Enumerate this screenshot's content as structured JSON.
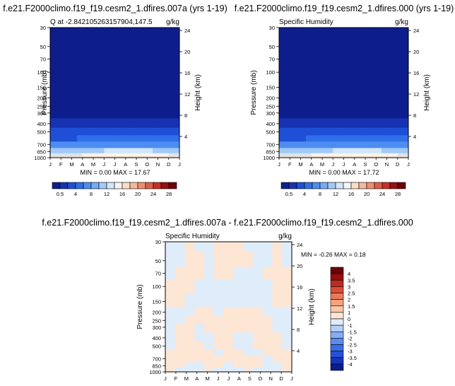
{
  "panels": [
    {
      "id": "left",
      "title": "f.e21.F2000climo.f19_f19.cesm2_1.dfires.007a (yrs 1-19)",
      "subtitle_left": "Q at -2.842105263157904,147.5",
      "units": "g/kg",
      "ylabel_left": "Pressure (mb)",
      "ylabel_right": "Height (km)",
      "minmax": "MIN =   0.00 MAX =  17.67"
    },
    {
      "id": "right",
      "title": "f.e21.F2000climo.f19_f19.cesm2_1.dfires.000 (yrs 1-19)",
      "subtitle_left": "Specific Humidity",
      "units": "g/kg",
      "ylabel_left": "Pressure (mb)",
      "ylabel_right": "Height (km)",
      "minmax": "MIN =   0.00 MAX =  17.72"
    },
    {
      "id": "diff",
      "title": "f.e21.F2000climo.f19_f19.cesm2_1.dfires.007a - f.e21.F2000climo.f19_f19.cesm2_1.dfires.000",
      "subtitle_left": "Specific Humidity",
      "units": "g/kg",
      "ylabel_left": "Pressure (mb)",
      "ylabel_right": "Height (km)",
      "minmax": "MIN = -0.26 MAX =   0.18"
    }
  ],
  "chart_data": [
    {
      "type": "heatmap",
      "panel": "left",
      "title": "f.e21.F2000climo.f19_f19.cesm2_1.dfires.007a (yrs 1-19)",
      "xlabel": "",
      "ylabel": "Pressure (mb)",
      "ylabel_right": "Height (km)",
      "x_ticks": [
        "J",
        "F",
        "M",
        "A",
        "M",
        "J",
        "J",
        "A",
        "S",
        "O",
        "N",
        "D",
        "J"
      ],
      "y_ticks": [
        "30",
        "50",
        "70",
        "100",
        "150",
        "200",
        "250",
        "300",
        "400",
        "500",
        "700",
        "850",
        "1000"
      ],
      "y2_ticks": [
        "24",
        "20",
        "16",
        "12",
        "8",
        "4"
      ],
      "rows_pressure": [
        30,
        50,
        70,
        100,
        150,
        200,
        250,
        300,
        400,
        500,
        600,
        700,
        850,
        925,
        1000
      ],
      "values_annual_mean": [
        0.0,
        0.0,
        0.0,
        0.0,
        0.01,
        0.02,
        0.05,
        0.4,
        1.3,
        2.8,
        4.6,
        7.0,
        11.5,
        14.5,
        17.0
      ],
      "seasonal_amp": [
        0,
        0,
        0,
        0,
        0,
        0,
        0,
        0.05,
        0.25,
        0.5,
        0.8,
        1.0,
        1.1,
        1.0,
        0.7
      ],
      "min": 0.0,
      "max": 17.67
    },
    {
      "type": "heatmap",
      "panel": "right",
      "title": "f.e21.F2000climo.f19_f19.cesm2_1.dfires.000 (yrs 1-19)",
      "xlabel": "",
      "ylabel": "Pressure (mb)",
      "ylabel_right": "Height (km)",
      "x_ticks": [
        "J",
        "F",
        "M",
        "A",
        "M",
        "J",
        "J",
        "A",
        "S",
        "O",
        "N",
        "D",
        "J"
      ],
      "y_ticks": [
        "30",
        "50",
        "70",
        "100",
        "150",
        "200",
        "250",
        "300",
        "400",
        "500",
        "700",
        "850",
        "1000"
      ],
      "y2_ticks": [
        "24",
        "20",
        "16",
        "12",
        "8",
        "4"
      ],
      "rows_pressure": [
        30,
        50,
        70,
        100,
        150,
        200,
        250,
        300,
        400,
        500,
        600,
        700,
        850,
        925,
        1000
      ],
      "values_annual_mean": [
        0.0,
        0.0,
        0.0,
        0.0,
        0.01,
        0.02,
        0.05,
        0.4,
        1.3,
        2.8,
        4.6,
        7.0,
        11.5,
        14.5,
        17.0
      ],
      "seasonal_amp": [
        0,
        0,
        0,
        0,
        0,
        0,
        0,
        0.05,
        0.25,
        0.5,
        0.8,
        1.0,
        1.1,
        1.0,
        0.7
      ],
      "min": 0.0,
      "max": 17.72
    },
    {
      "type": "heatmap",
      "panel": "diff",
      "title": "f.e21.F2000climo.f19_f19.cesm2_1.dfires.007a - f.e21.F2000climo.f19_f19.cesm2_1.dfires.000",
      "xlabel": "",
      "ylabel": "Pressure (mb)",
      "ylabel_right": "Height (km)",
      "x_ticks": [
        "J",
        "F",
        "M",
        "A",
        "M",
        "J",
        "J",
        "A",
        "S",
        "O",
        "N",
        "D",
        "J"
      ],
      "y_ticks": [
        "30",
        "50",
        "70",
        "100",
        "150",
        "200",
        "250",
        "300",
        "400",
        "500",
        "700",
        "850",
        "1000"
      ],
      "y2_ticks": [
        "24",
        "20",
        "16",
        "12",
        "8",
        "4"
      ],
      "cols": [
        "J",
        "F",
        "M",
        "A",
        "M",
        "J",
        "J",
        "A",
        "S",
        "O",
        "N",
        "D",
        "J"
      ],
      "rows_pressure": [
        30,
        50,
        70,
        100,
        150,
        200,
        250,
        300,
        400,
        500,
        600,
        700,
        850,
        925,
        1000
      ],
      "values": [
        [
          -0.05,
          -0.05,
          0.02,
          -0.05,
          -0.05,
          0.02,
          0.05,
          0.02,
          -0.05,
          -0.05,
          -0.05,
          0.02,
          -0.05
        ],
        [
          -0.05,
          -0.05,
          0.05,
          0.02,
          -0.05,
          0.05,
          0.05,
          0.05,
          0.02,
          -0.05,
          -0.05,
          0.05,
          -0.05
        ],
        [
          -0.05,
          0.05,
          0.05,
          0.02,
          -0.05,
          0.05,
          0.02,
          -0.05,
          -0.05,
          -0.05,
          0.05,
          0.05,
          0.02
        ],
        [
          0.05,
          0.05,
          0.02,
          -0.05,
          -0.05,
          -0.05,
          -0.05,
          -0.05,
          -0.05,
          -0.05,
          -0.05,
          0.05,
          0.05
        ],
        [
          0.05,
          0.02,
          -0.05,
          -0.05,
          -0.05,
          -0.05,
          -0.05,
          -0.05,
          -0.05,
          -0.05,
          -0.05,
          0.02,
          0.05
        ],
        [
          -0.05,
          -0.05,
          -0.05,
          0.05,
          0.05,
          -0.05,
          0.05,
          0.05,
          0.05,
          0.02,
          -0.05,
          -0.05,
          -0.05
        ],
        [
          -0.05,
          -0.05,
          0.05,
          0.05,
          0.05,
          0.05,
          0.05,
          0.05,
          0.05,
          0.05,
          0.02,
          -0.05,
          -0.05
        ],
        [
          -0.05,
          0.05,
          0.05,
          -0.05,
          0.05,
          0.05,
          0.05,
          0.05,
          0.05,
          0.05,
          0.05,
          -0.05,
          -0.05
        ],
        [
          -0.05,
          0.05,
          0.05,
          -0.05,
          -0.05,
          0.05,
          0.05,
          -0.05,
          -0.05,
          0.05,
          0.05,
          0.05,
          -0.05
        ],
        [
          -0.05,
          0.05,
          0.05,
          0.05,
          -0.05,
          0.05,
          0.05,
          -0.05,
          -0.05,
          0.05,
          0.05,
          0.05,
          -0.05
        ],
        [
          0.05,
          0.05,
          0.05,
          0.05,
          0.05,
          -0.05,
          0.05,
          0.05,
          -0.05,
          -0.05,
          0.05,
          0.05,
          0.05
        ],
        [
          0.05,
          0.05,
          0.05,
          0.05,
          0.05,
          0.05,
          0.05,
          0.05,
          0.05,
          0.05,
          -0.05,
          0.05,
          0.05
        ],
        [
          0.05,
          0.05,
          -0.05,
          -0.05,
          0.05,
          0.05,
          -0.05,
          0.05,
          0.05,
          0.05,
          -0.05,
          -0.05,
          0.05
        ],
        [
          0.05,
          -0.05,
          -0.05,
          -0.05,
          0.05,
          -0.05,
          -0.05,
          -0.05,
          0.05,
          -0.05,
          -0.05,
          -0.05,
          0.05
        ],
        [
          0.02,
          -0.05,
          -0.05,
          -0.05,
          -0.05,
          -0.05,
          -0.05,
          -0.05,
          -0.05,
          -0.05,
          -0.05,
          -0.05,
          0.02
        ]
      ],
      "min": -0.26,
      "max": 0.18
    }
  ],
  "colorbars": {
    "abs": {
      "labels": [
        "0.5",
        "4",
        "8",
        "12",
        "16",
        "20",
        "24",
        "28"
      ],
      "levels": [
        0.5,
        2,
        4,
        6,
        8,
        10,
        12,
        14,
        16,
        18,
        20,
        22,
        24,
        26,
        28
      ],
      "colors": [
        "#0d1e8c",
        "#1632b3",
        "#1f4fd6",
        "#2f6fe8",
        "#4d8df0",
        "#74abf4",
        "#a3c9f6",
        "#d2e6f8",
        "#f4f4f4",
        "#fbdcc6",
        "#f6b79a",
        "#ee8f70",
        "#e05d45",
        "#c73026",
        "#9c0d12",
        "#6b0309"
      ]
    },
    "diff": {
      "labels": [
        "4",
        "3.5",
        "3",
        "2.5",
        "2",
        "1.5",
        "1",
        "0",
        "-1",
        "-1.5",
        "-2",
        "-2.5",
        "-3",
        "-3.5",
        "-4"
      ],
      "levels": [
        -4,
        -3.5,
        -3,
        -2.5,
        -2,
        -1.5,
        -1,
        0,
        1,
        1.5,
        2,
        2.5,
        3,
        3.5,
        4
      ],
      "colors": [
        "#0a1c90",
        "#1834b8",
        "#2550d8",
        "#3a6ee6",
        "#5a8cee",
        "#86adf3",
        "#b6cff6",
        "#dfecfa",
        "#fde6d4",
        "#fac6a8",
        "#f4a27f",
        "#ea7a5b",
        "#da4e38",
        "#c02a20",
        "#9a0c10",
        "#6b0309"
      ]
    }
  }
}
